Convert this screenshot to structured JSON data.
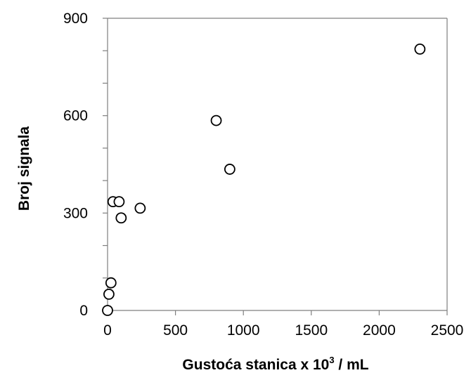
{
  "chart_data": {
    "type": "scatter",
    "xlabel": "Gustoća stanica x 10",
    "xlabel_superscript": "3",
    "xlabel_suffix": " / mL",
    "ylabel": "Broj signala",
    "xlim": [
      0,
      2500
    ],
    "ylim": [
      0,
      900
    ],
    "x_ticks": [
      0,
      500,
      1000,
      1500,
      2000,
      2500
    ],
    "y_ticks": [
      0,
      300,
      600,
      900
    ],
    "y_minor_ticks": [
      100,
      200,
      400,
      500,
      700,
      800
    ],
    "grid": false,
    "series": [
      {
        "marker": "open-circle",
        "points": [
          {
            "x": 0,
            "y": 0
          },
          {
            "x": 10,
            "y": 50
          },
          {
            "x": 25,
            "y": 85
          },
          {
            "x": 40,
            "y": 335
          },
          {
            "x": 85,
            "y": 335
          },
          {
            "x": 100,
            "y": 285
          },
          {
            "x": 240,
            "y": 315
          },
          {
            "x": 800,
            "y": 585
          },
          {
            "x": 900,
            "y": 435
          },
          {
            "x": 2300,
            "y": 805
          }
        ]
      }
    ]
  }
}
